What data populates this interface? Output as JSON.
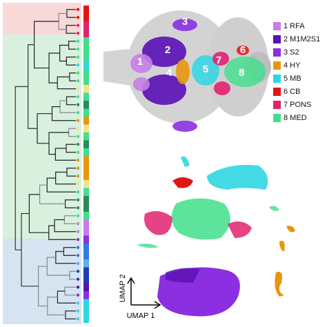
{
  "legend": [
    {
      "label": "1 RFA",
      "color": "#c77ee6"
    },
    {
      "label": "2 M1M2S1",
      "color": "#5a10b4"
    },
    {
      "label": "3 S2",
      "color": "#8b2fe0"
    },
    {
      "label": "4 HY",
      "color": "#e8960f"
    },
    {
      "label": "5 MB",
      "color": "#2fd6e2"
    },
    {
      "label": "6 CB",
      "color": "#e01515"
    },
    {
      "label": "7 PONS",
      "color": "#e0226f"
    },
    {
      "label": "8 MED",
      "color": "#40df8c"
    }
  ],
  "brain_labels": [
    "1",
    "2",
    "3",
    "4",
    "5",
    "6",
    "7",
    "8"
  ],
  "umap": {
    "x_label": "UMAP 1",
    "y_label": "UMAP 2"
  }
}
